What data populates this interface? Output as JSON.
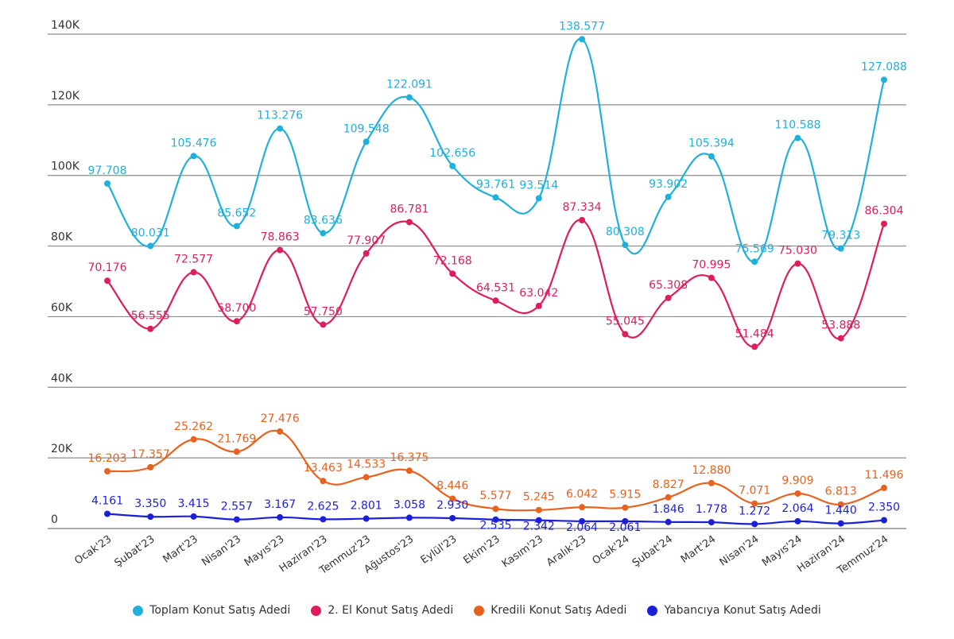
{
  "chart_data": {
    "type": "line",
    "categories": [
      "Ocak'23",
      "Şubat'23",
      "Mart'23",
      "Nisan'23",
      "Mayıs'23",
      "Haziran'23",
      "Temmuz'23",
      "Ağustos'23",
      "Eylül'23",
      "Ekim'23",
      "Kasım'23",
      "Aralık'23",
      "Ocak'24",
      "Şubat'24",
      "Mart'24",
      "Nisan'24",
      "Mayıs'24",
      "Haziran'24",
      "Temmuz'24"
    ],
    "y_ticks": [
      {
        "value": 0,
        "label": "0"
      },
      {
        "value": 20000,
        "label": "20K"
      },
      {
        "value": 40000,
        "label": "40K"
      },
      {
        "value": 60000,
        "label": "60K"
      },
      {
        "value": 80000,
        "label": "80K"
      },
      {
        "value": 100000,
        "label": "100K"
      },
      {
        "value": 120000,
        "label": "120K"
      },
      {
        "value": 140000,
        "label": "140K"
      }
    ],
    "ylim": [
      0,
      140000
    ],
    "grid": true,
    "legend_position": "bottom",
    "series": [
      {
        "name": "Toplam Konut Satış Adedi",
        "color": "#1fb0dc",
        "values": [
          97708,
          80031,
          105476,
          85652,
          113276,
          83636,
          109548,
          122091,
          102656,
          93761,
          93514,
          138577,
          80308,
          93902,
          105394,
          75569,
          110588,
          79313,
          127088
        ],
        "labels": [
          "97.708",
          "80.031",
          "105.476",
          "85.652",
          "113.276",
          "83.636",
          "109.548",
          "122.091",
          "102.656",
          "93.761",
          "93.514",
          "138.577",
          "80.308",
          "93.902",
          "105.394",
          "75.569",
          "110.588",
          "79.313",
          "127.088"
        ]
      },
      {
        "name": "2. El Konut Satış Adedi",
        "color": "#df1d5d",
        "values": [
          70176,
          56555,
          72577,
          58700,
          78863,
          57750,
          77907,
          86781,
          72168,
          64531,
          63042,
          87334,
          55045,
          65308,
          70995,
          51484,
          75030,
          53888,
          86304
        ],
        "labels": [
          "70.176",
          "56.555",
          "72.577",
          "58.700",
          "78.863",
          "57.750",
          "77.907",
          "86.781",
          "72.168",
          "64.531",
          "63.042",
          "87.334",
          "55.045",
          "65.308",
          "70.995",
          "51.484",
          "75.030",
          "53.888",
          "86.304"
        ]
      },
      {
        "name": "Kredili Konut Satış Adedi",
        "color": "#e8621f",
        "values": [
          16203,
          17357,
          25262,
          21769,
          27476,
          13463,
          14533,
          16375,
          8446,
          5577,
          5245,
          6042,
          5915,
          8827,
          12880,
          7071,
          9909,
          6813,
          11496
        ],
        "labels": [
          "16.203",
          "17.357",
          "25.262",
          "21.769",
          "27.476",
          "13.463",
          "14.533",
          "16.375",
          "8.446",
          "5.577",
          "5.245",
          "6.042",
          "5.915",
          "8.827",
          "12.880",
          "7.071",
          "9.909",
          "6.813",
          "11.496"
        ]
      },
      {
        "name": "Yabancıya Konut Satış Adedi",
        "color": "#1c1fd8",
        "values": [
          4161,
          3350,
          3415,
          2557,
          3167,
          2625,
          2801,
          3058,
          2930,
          2535,
          2342,
          2064,
          2061,
          1846,
          1778,
          1272,
          2064,
          1440,
          2350
        ],
        "labels": [
          "4.161",
          "3.350",
          "3.415",
          "2.557",
          "3.167",
          "2.625",
          "2.801",
          "3.058",
          "2.930",
          "2.535",
          "2.342",
          "2.064",
          "2.061",
          "1.846",
          "1.778",
          "1.272",
          "2.064",
          "1.440",
          "2.350"
        ]
      }
    ]
  }
}
